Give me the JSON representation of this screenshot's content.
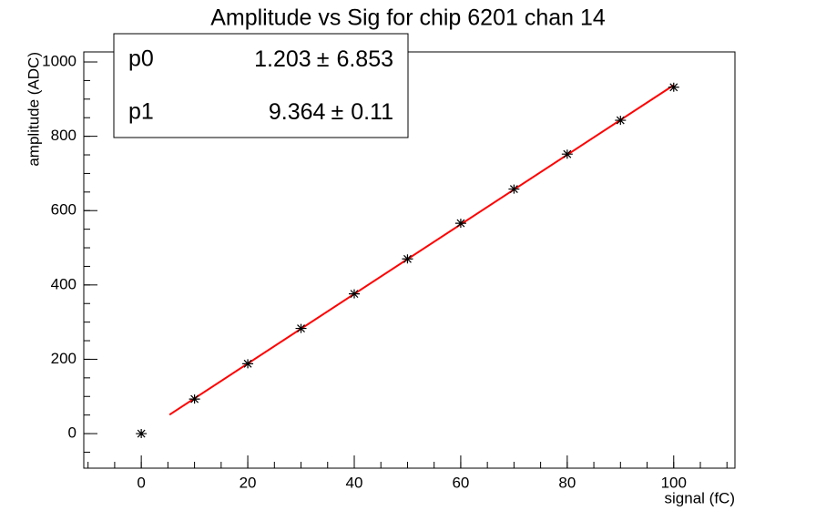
{
  "chart_data": {
    "type": "scatter",
    "title": "Amplitude vs Sig for chip 6201 chan 14",
    "x_label": "signal (fC)",
    "y_label": "amplitude (ADC)",
    "x": [
      0,
      10,
      20,
      30,
      40,
      50,
      60,
      70,
      80,
      90,
      100
    ],
    "values": [
      0,
      93,
      188,
      283,
      376,
      470,
      566,
      658,
      752,
      843,
      932
    ],
    "color": "#000000",
    "xlim": [
      -10.8,
      111.5
    ],
    "ylim": [
      -93,
      1027
    ],
    "xticks": [
      0,
      20,
      40,
      60,
      80,
      100
    ],
    "yticks": [
      0,
      200,
      400,
      600,
      800,
      1000
    ],
    "fit": {
      "color": "#ff0000",
      "range": [
        5.3,
        100
      ],
      "separator": "±",
      "params": [
        {
          "name": "p0",
          "value": 1.203,
          "error": 6.853
        },
        {
          "name": "p1",
          "value": 9.364,
          "error": 0.11
        }
      ]
    }
  }
}
